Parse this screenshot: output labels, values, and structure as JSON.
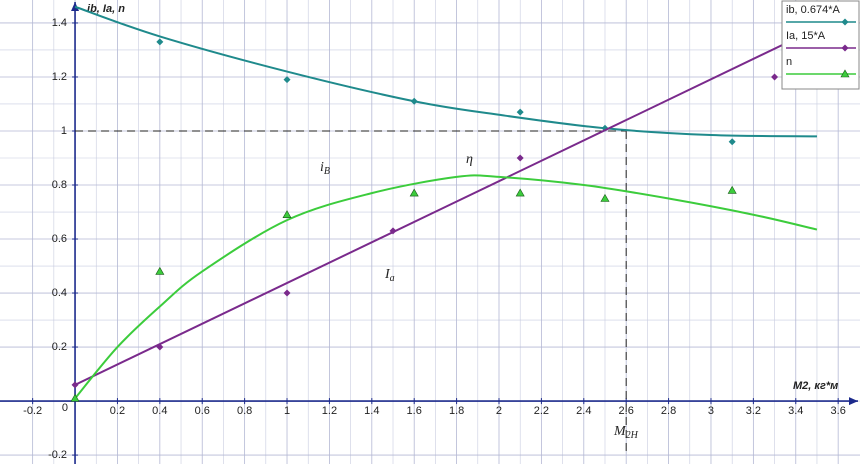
{
  "chart_data": {
    "type": "scatter-fit",
    "y_label": "ib, Ia, n",
    "x_label": "M2, кг*м",
    "xlim": [
      -0.354,
      3.703
    ],
    "ylim": [
      -0.233,
      1.485
    ],
    "xticks": [
      -0.2,
      0,
      0.2,
      0.4,
      0.6,
      0.8,
      1,
      1.2,
      1.4,
      1.6,
      1.8,
      2,
      2.2,
      2.4,
      2.6,
      2.8,
      3,
      3.2,
      3.4,
      3.6
    ],
    "yticks": [
      -0.2,
      0.2,
      0.4,
      0.6,
      0.8,
      1,
      1.2,
      1.4
    ],
    "grid": true,
    "legend": "top-right",
    "series": [
      {
        "name": "ib, 0.674*A",
        "color": "#1f8a8c",
        "marker": "diamond",
        "x": [
          0.4,
          1,
          1.6,
          2.1,
          2.5,
          3.1
        ],
        "values": [
          1.33,
          1.19,
          1.11,
          1.07,
          1.01,
          0.96
        ],
        "fit": {
          "x": [
            0,
            0.4,
            1,
            1.6,
            2,
            2.5,
            3,
            3.5
          ],
          "values": [
            1.46,
            1.35,
            1.22,
            1.11,
            1.06,
            1.01,
            0.985,
            0.98
          ]
        }
      },
      {
        "name": "Ia, 15*A",
        "color": "#7a2a8c",
        "marker": "diamond",
        "x": [
          0,
          0.4,
          1,
          1.5,
          2.1,
          3.3
        ],
        "values": [
          0.06,
          0.2,
          0.4,
          0.63,
          0.9,
          1.2
        ],
        "fit": {
          "x": [
            0,
            3.5
          ],
          "values": [
            0.06,
            1.38
          ]
        }
      },
      {
        "name": "n",
        "color": "#3ccc3c",
        "marker": "triangle",
        "x": [
          0,
          0.4,
          1,
          1.6,
          2.1,
          2.5,
          3.1
        ],
        "values": [
          0.01,
          0.48,
          0.69,
          0.77,
          0.77,
          0.75,
          0.78
        ],
        "fit": {
          "x": [
            0,
            0.2,
            0.4,
            0.6,
            1,
            1.4,
            1.8,
            2,
            2.4,
            2.8,
            3.2,
            3.5
          ],
          "values": [
            0.01,
            0.2,
            0.35,
            0.48,
            0.67,
            0.77,
            0.83,
            0.83,
            0.8,
            0.75,
            0.69,
            0.635
          ]
        }
      }
    ],
    "reference": {
      "x": 2.6,
      "y": 1
    },
    "annotations": [
      {
        "text": "i",
        "sub": "B"
      },
      {
        "text": "η"
      },
      {
        "text": "I",
        "sub": "a"
      },
      {
        "text": "M",
        "sub": "2H"
      }
    ]
  }
}
